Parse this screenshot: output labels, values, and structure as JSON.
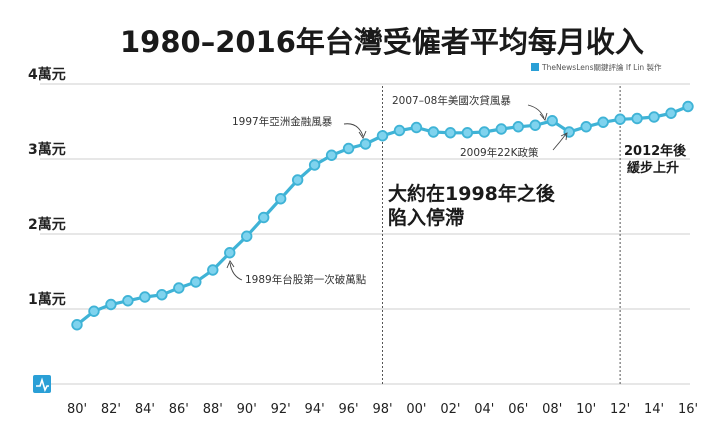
{
  "chart_data": {
    "type": "line",
    "title": "1980–2016年台灣受僱者平均每月收入",
    "credit": "TheNewsLens關鍵評論 If Lin 製作",
    "xlabel": "",
    "ylabel": "",
    "x": [
      1980,
      1981,
      1982,
      1983,
      1984,
      1985,
      1986,
      1987,
      1988,
      1989,
      1990,
      1991,
      1992,
      1993,
      1994,
      1995,
      1996,
      1997,
      1998,
      1999,
      2000,
      2001,
      2002,
      2003,
      2004,
      2005,
      2006,
      2007,
      2008,
      2009,
      2010,
      2011,
      2012,
      2013,
      2014,
      2015,
      2016
    ],
    "series": [
      {
        "name": "",
        "color": "#3fb3d6",
        "values": [
          7900,
          9700,
          10600,
          11100,
          11600,
          11900,
          12800,
          13600,
          15200,
          17500,
          19700,
          22200,
          24700,
          27200,
          29200,
          30500,
          31400,
          32000,
          33100,
          33800,
          34200,
          33600,
          33500,
          33500,
          33600,
          34000,
          34300,
          34500,
          35100,
          33600,
          34300,
          34900,
          35300,
          35400,
          35600,
          36100,
          37000
        ]
      }
    ],
    "xticks": [
      {
        "value": 1980,
        "label": "80'"
      },
      {
        "value": 1982,
        "label": "82'"
      },
      {
        "value": 1984,
        "label": "84'"
      },
      {
        "value": 1986,
        "label": "86'"
      },
      {
        "value": 1988,
        "label": "88'"
      },
      {
        "value": 1990,
        "label": "90'"
      },
      {
        "value": 1992,
        "label": "92'"
      },
      {
        "value": 1994,
        "label": "94'"
      },
      {
        "value": 1996,
        "label": "96'"
      },
      {
        "value": 1998,
        "label": "98'"
      },
      {
        "value": 2000,
        "label": "00'"
      },
      {
        "value": 2002,
        "label": "02'"
      },
      {
        "value": 2004,
        "label": "04'"
      },
      {
        "value": 2006,
        "label": "06'"
      },
      {
        "value": 2008,
        "label": "08'"
      },
      {
        "value": 2010,
        "label": "10'"
      },
      {
        "value": 2012,
        "label": "12'"
      },
      {
        "value": 2014,
        "label": "14'"
      },
      {
        "value": 2016,
        "label": "16'"
      }
    ],
    "yticks": [
      {
        "value": 10000,
        "label": "1萬元"
      },
      {
        "value": 20000,
        "label": "2萬元"
      },
      {
        "value": 30000,
        "label": "3萬元"
      },
      {
        "value": 40000,
        "label": "4萬元"
      }
    ],
    "xlim": [
      1980,
      2016
    ],
    "ylim": [
      0,
      40000
    ],
    "grid": true,
    "reference_lines_x": [
      1998,
      2012
    ],
    "annotations": [
      {
        "text": "1997年亞洲金融風暴",
        "x": 1997,
        "y": 32000,
        "style": "small"
      },
      {
        "text": "2007–08年美國次貸風暴",
        "x": 2008,
        "y": 35100,
        "style": "small"
      },
      {
        "text": "2009年22K政策",
        "x": 2009,
        "y": 33600,
        "style": "small"
      },
      {
        "text": "1989年台股第一次破萬點",
        "x": 1989,
        "y": 17500,
        "style": "small"
      },
      {
        "lines": [
          "大約在1998年之後",
          "陷入停滯"
        ],
        "style": "large"
      },
      {
        "lines": [
          "2012年後",
          "緩步上升"
        ],
        "style": "medium"
      }
    ]
  }
}
